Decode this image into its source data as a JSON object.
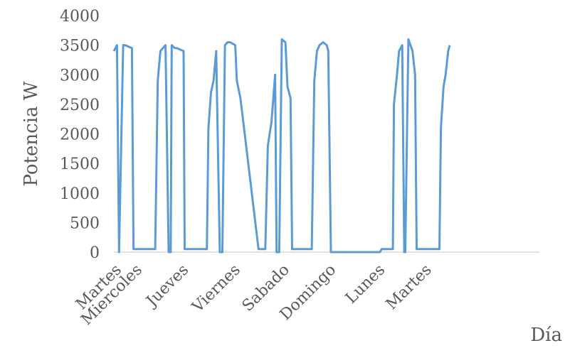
{
  "chart_data": {
    "type": "line",
    "title": "",
    "xlabel": "Día",
    "ylabel": "Potencia W",
    "ylim": [
      0,
      4000
    ],
    "yticks": [
      0,
      500,
      1000,
      1500,
      2000,
      2500,
      3000,
      3500,
      4000
    ],
    "xlim": [
      0,
      7
    ],
    "grid": false,
    "legend": "none",
    "line_color": "#5b9bd5",
    "categories": [
      "Martes",
      "Miercoles",
      "Jueves",
      "Viernes",
      "Sabado",
      "Domingo",
      "Lunes",
      "Martes"
    ],
    "category_positions": [
      0.05,
      0.45,
      1.35,
      2.35,
      3.3,
      4.2,
      5.15,
      6.05
    ],
    "series": [
      {
        "x": [
          0,
          0.06,
          0.1,
          0.18,
          0.22,
          0.35,
          0.38,
          0.45,
          0.8,
          0.85,
          0.9,
          0.95,
          1.0,
          1.06,
          1.1,
          1.12,
          1.18,
          1.22,
          1.35,
          1.37,
          1.45,
          1.8,
          1.83,
          1.88,
          1.93,
          1.98,
          2.05,
          2.1,
          2.15,
          2.2,
          2.25,
          2.35,
          2.38,
          2.45,
          2.8,
          2.83,
          2.88,
          2.93,
          2.98,
          3.05,
          3.12,
          3.15,
          3.2,
          3.25,
          3.32,
          3.36,
          3.42,
          3.45,
          3.8,
          3.83,
          3.88,
          3.93,
          3.98,
          4.05,
          4.12,
          4.15,
          4.2,
          5.15,
          5.18,
          5.4,
          5.42,
          5.48,
          5.52,
          5.58,
          5.62,
          5.64,
          5.7,
          5.72,
          5.78,
          5.83,
          5.86,
          5.89,
          5.95,
          6.3,
          6.33,
          6.38,
          6.42,
          6.47,
          6.5
        ],
        "y": [
          3400,
          3500,
          0,
          3500,
          3500,
          3450,
          50,
          50,
          50,
          2900,
          3400,
          3450,
          3500,
          0,
          0,
          3500,
          3450,
          3450,
          3400,
          50,
          50,
          50,
          2100,
          2700,
          2900,
          3400,
          0,
          0,
          3500,
          3550,
          3550,
          3500,
          2900,
          2600,
          50,
          50,
          50,
          50,
          1800,
          2200,
          3000,
          0,
          0,
          3600,
          3550,
          2800,
          2600,
          50,
          50,
          50,
          2900,
          3400,
          3500,
          3550,
          3500,
          3400,
          0,
          0,
          50,
          50,
          2500,
          3000,
          3400,
          3500,
          0,
          0,
          3600,
          3550,
          3400,
          3000,
          50,
          50,
          50,
          50,
          2100,
          2800,
          3000,
          3400,
          3500
        ]
      }
    ]
  }
}
